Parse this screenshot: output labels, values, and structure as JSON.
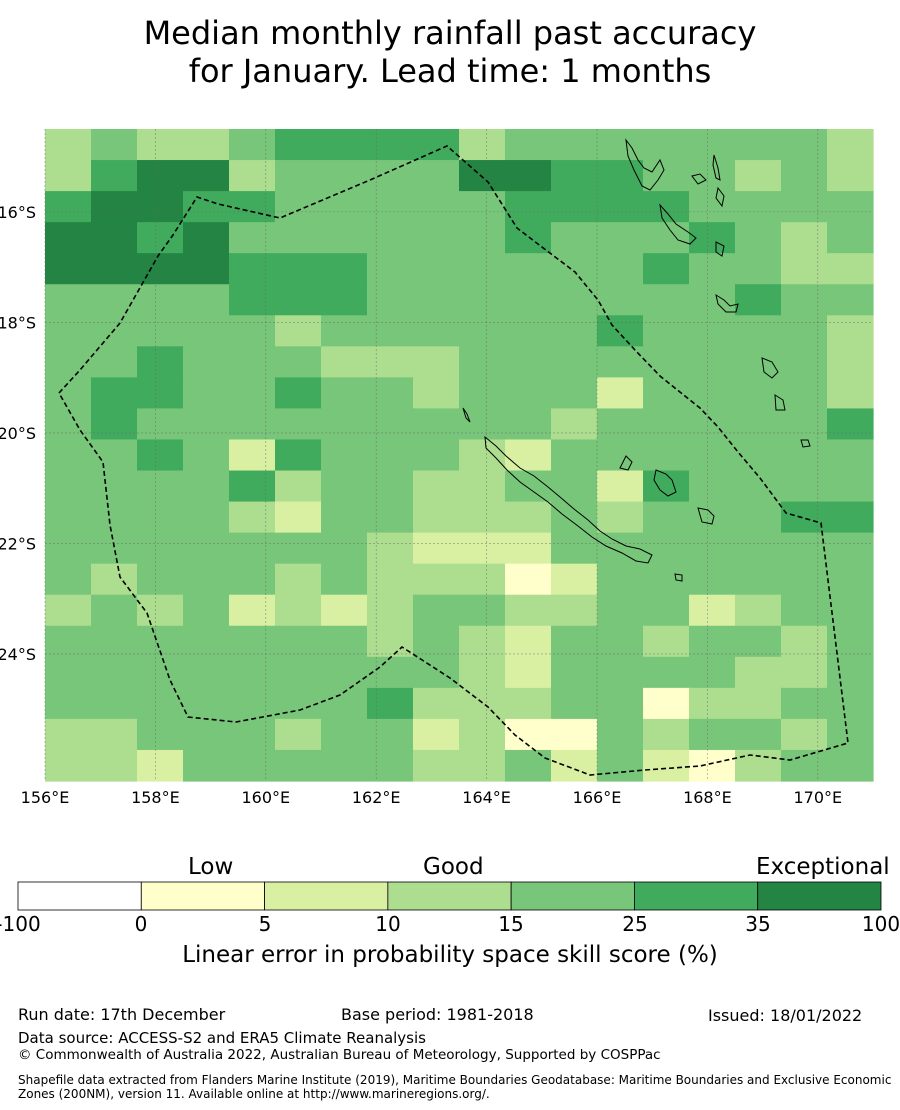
{
  "title": {
    "line1": "Median monthly rainfall past accuracy",
    "line2": "for January. Lead time: 1 months"
  },
  "map": {
    "lon_range": [
      156,
      171
    ],
    "lat_range": [
      -26.3,
      -14.5
    ],
    "x_ticks": [
      "156°E",
      "158°E",
      "160°E",
      "162°E",
      "164°E",
      "166°E",
      "168°E",
      "170°E"
    ],
    "y_ticks": [
      "16°S",
      "18°S",
      "20°S",
      "22°S",
      "24°S"
    ],
    "grid": true,
    "grid_cols": 18,
    "grid_rows": 21,
    "cell_classes": [
      "232234444233333332",
      "245523333554433232",
      "455443333344443333",
      "554533333343334323",
      "555544433333343322",
      "333344433333333433",
      "333332333333433332",
      "334333222333333332",
      "344334332333133332",
      "343333333332333334",
      "334314333213333333",
      "333342332233143333",
      "333321332223233344",
      "333333321113333333",
      "323332322201333333",
      "232312123322331233",
      "333333323213323323",
      "333333333213333223",
      "333333342223302233",
      "223332331200323323",
      "221333332231310233"
    ],
    "shading_note": "values 0-5 map to colorbar bins"
  },
  "colorbar": {
    "colors": [
      "#ffffff",
      "#ffffcc",
      "#d9f0a3",
      "#addd8e",
      "#78c679",
      "#41ab5d",
      "#238443"
    ],
    "bounds": [
      "-100",
      "0",
      "5",
      "10",
      "15",
      "25",
      "35",
      "100"
    ],
    "labels": {
      "low": "Low",
      "good": "Good",
      "exceptional": "Exceptional"
    },
    "title": "Linear error in probability space skill score (%)"
  },
  "footer": {
    "run_date": "Run date: 17th December",
    "base_period": "Base period: 1981-2018",
    "issued": "Issued: 18/01/2022",
    "data_source": "Data source: ACCESS-S2 and ERA5 Climate Reanalysis",
    "copyright": "© Commonwealth of Australia 2022, Australian Bureau of Meteorology, Supported by COSPPac",
    "shapefile": "Shapefile data extracted from Flanders Marine Institute (2019), Maritime Boundaries Geodatabase: Maritime Boundaries and Exclusive Economic Zones (200NM), version 11. Available online at http://www.marineregions.org/."
  }
}
